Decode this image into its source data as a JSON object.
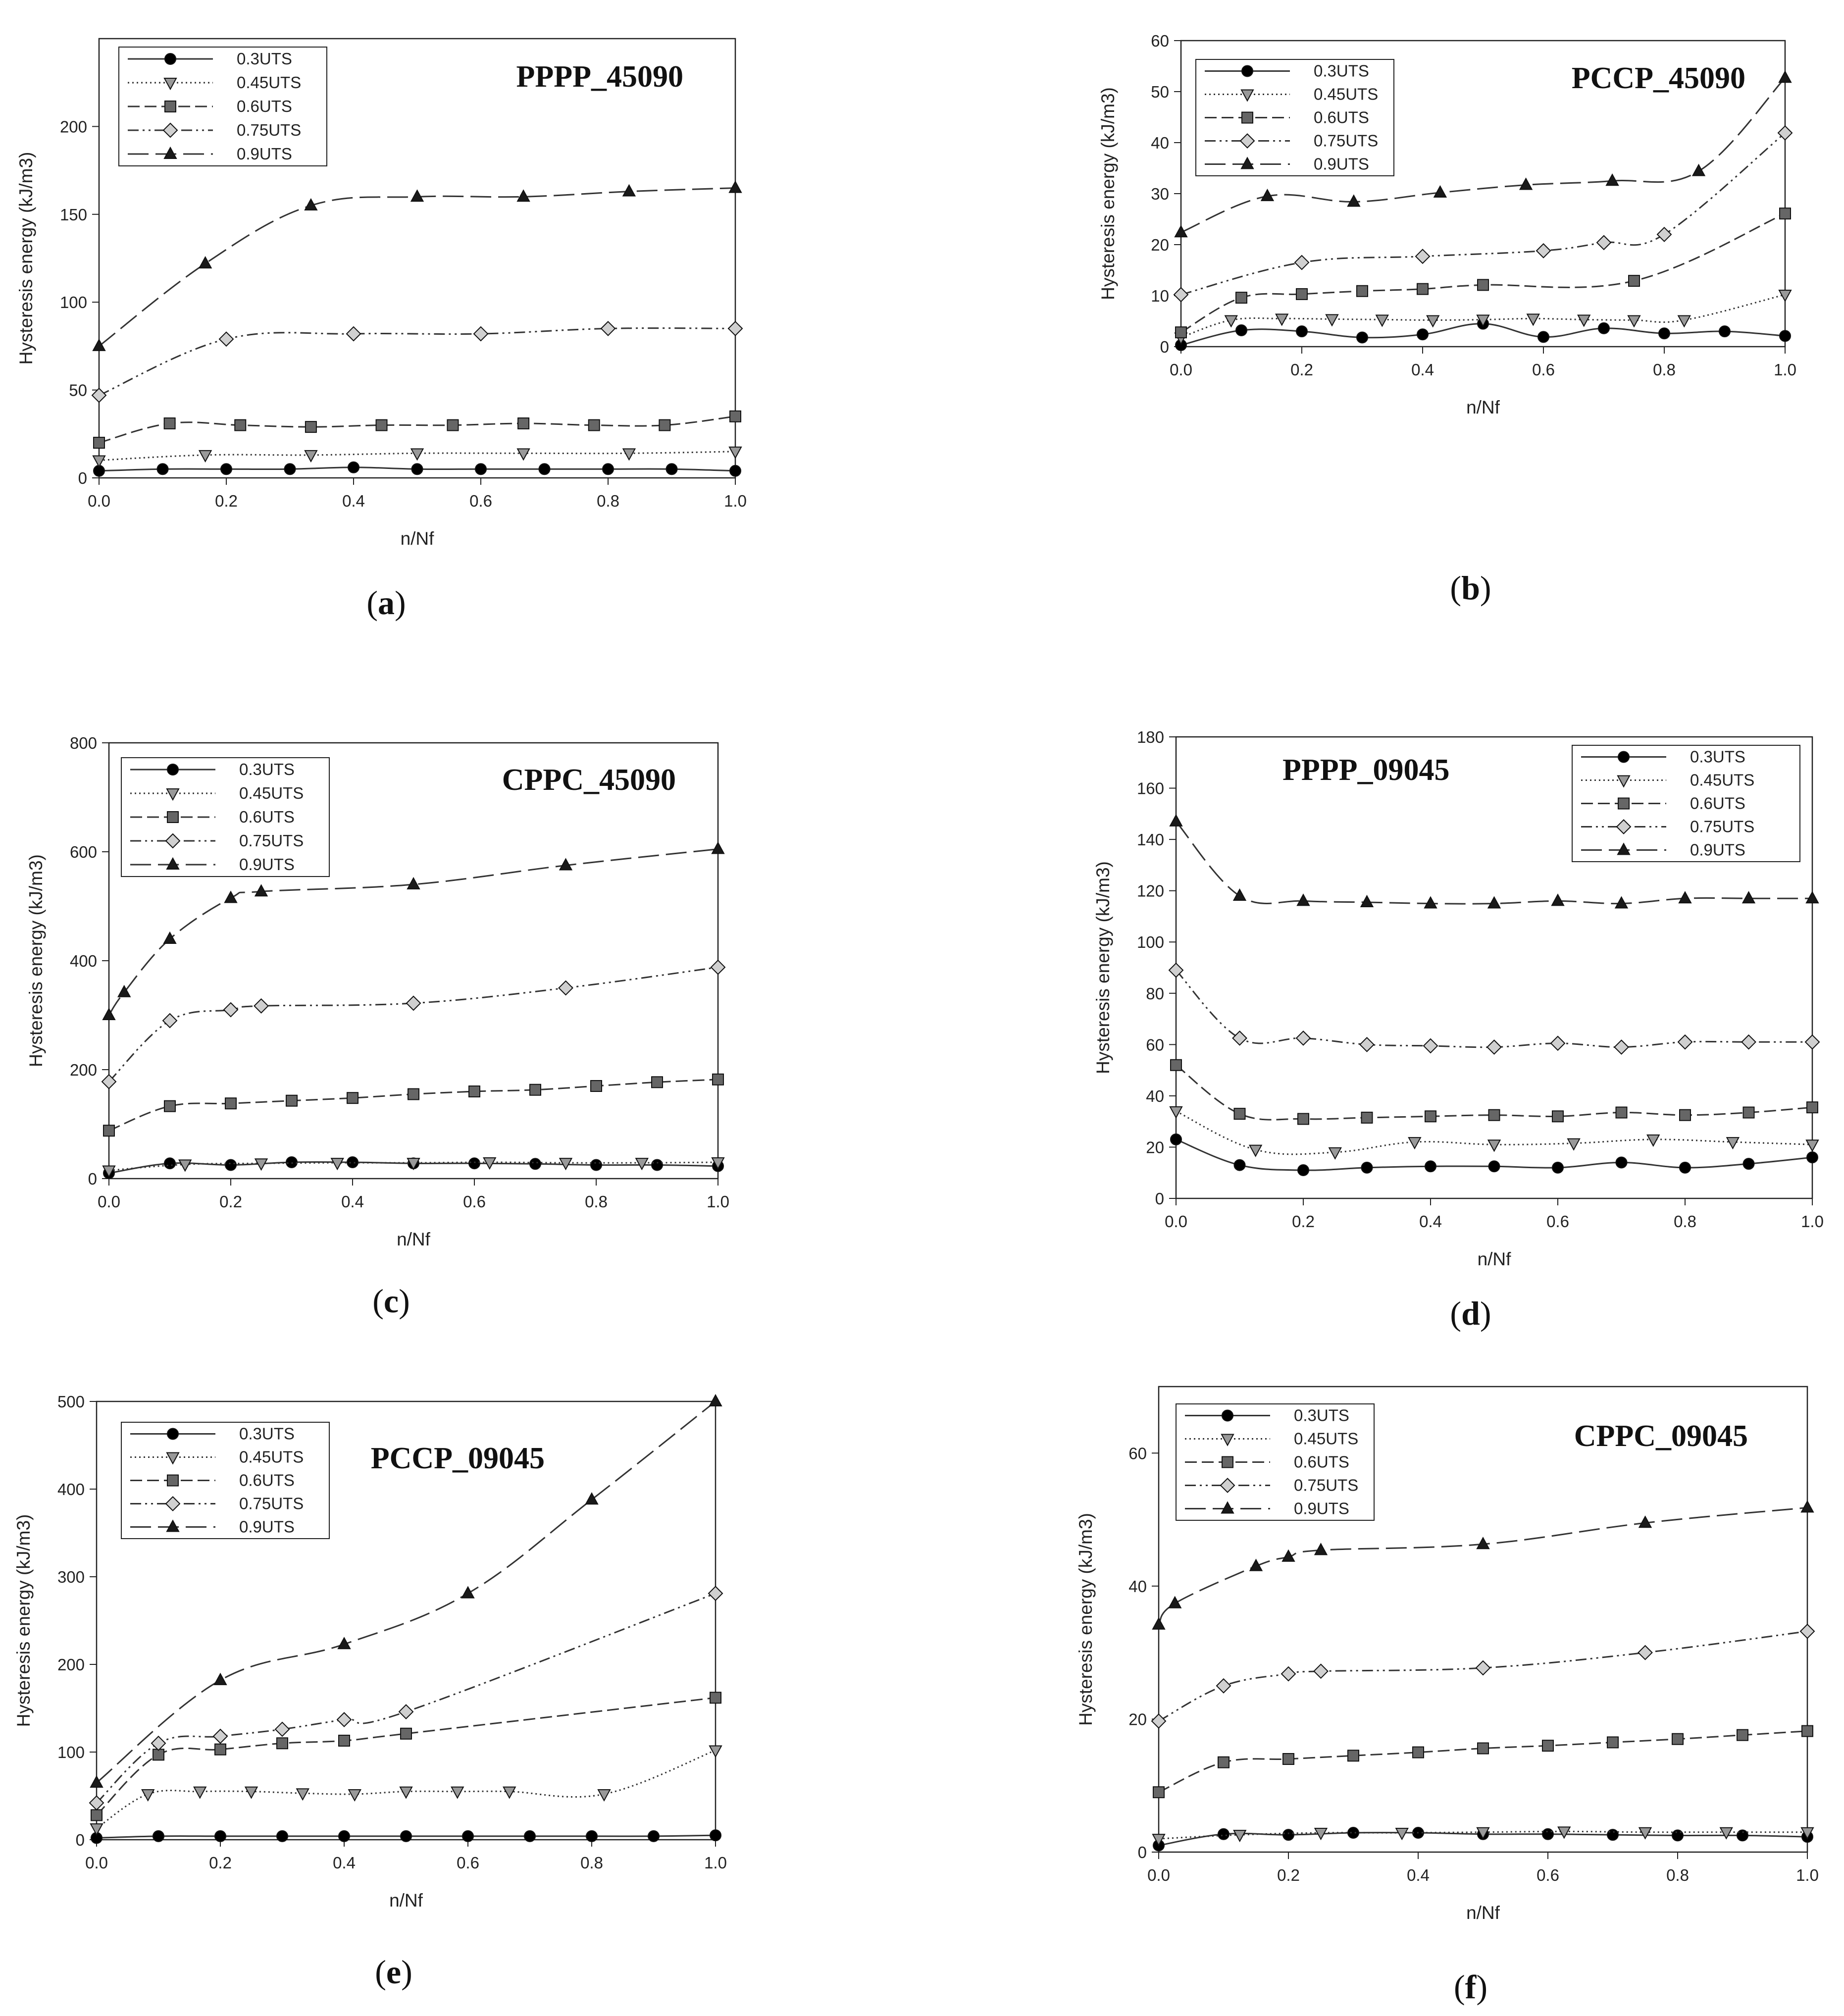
{
  "figure": {
    "axis_label_y_m3": "Hysteresis energy (kJ/m3)",
    "axis_label_y_slash": "Hysteresis energy (kJ/m3)",
    "axis_label_x": "n/Nf"
  },
  "style": {
    "line_color": "#333333",
    "circle_fill": "#000000",
    "triangle_down_fill": "#999999",
    "square_fill": "#666666",
    "diamond_fill": "#d0d0d0",
    "triangle_up_fill": "#1a1a1a"
  },
  "chart_data": [
    {
      "type": "line",
      "panel": "a",
      "title": "PPPP_45090",
      "xlabel": "n/Nf",
      "ylabel": "Hysteresis energy (kJ/m3)",
      "xlim": [
        0,
        1.0
      ],
      "ylim": [
        0,
        250
      ],
      "xticks": [
        "0.0",
        "0.2",
        "0.4",
        "0.6",
        "0.8",
        "1.0"
      ],
      "yticks": [
        "0",
        "50",
        "100",
        "150",
        "200"
      ],
      "legend": "top-left",
      "series": [
        {
          "name": "0.3UTS",
          "x": [
            0,
            0.1,
            0.2,
            0.3,
            0.4,
            0.5,
            0.6,
            0.7,
            0.8,
            0.9,
            1.0
          ],
          "y": [
            4,
            5,
            5,
            5,
            6,
            5,
            5,
            5,
            5,
            5,
            4
          ]
        },
        {
          "name": "0.45UTS",
          "x": [
            0,
            0.167,
            0.333,
            0.5,
            0.667,
            0.833,
            1.0
          ],
          "y": [
            10,
            13,
            13,
            14,
            14,
            14,
            15
          ]
        },
        {
          "name": "0.6UTS",
          "x": [
            0,
            0.111,
            0.222,
            0.333,
            0.444,
            0.556,
            0.667,
            0.778,
            0.889,
            1.0
          ],
          "y": [
            20,
            31,
            30,
            29,
            30,
            30,
            31,
            30,
            30,
            35
          ]
        },
        {
          "name": "0.75UTS",
          "x": [
            0,
            0.2,
            0.4,
            0.6,
            0.8,
            1.0
          ],
          "y": [
            47,
            79,
            82,
            82,
            85,
            85
          ]
        },
        {
          "name": "0.9UTS",
          "x": [
            0,
            0.167,
            0.333,
            0.5,
            0.667,
            0.833,
            1.0
          ],
          "y": [
            75,
            122,
            155,
            160,
            160,
            163,
            165
          ]
        }
      ],
      "caption": "a"
    },
    {
      "type": "line",
      "panel": "b",
      "title": "PCCP_45090",
      "xlabel": "n/Nf",
      "ylabel": "Hysteresis energy (kJ/m3)",
      "xlim": [
        0,
        1.0
      ],
      "ylim": [
        0,
        60
      ],
      "xticks": [
        "0.0",
        "0.2",
        "0.4",
        "0.6",
        "0.8",
        "1.0"
      ],
      "yticks": [
        "0",
        "10",
        "20",
        "30",
        "40",
        "50",
        "60"
      ],
      "legend": "top-left",
      "series": [
        {
          "name": "0.3UTS",
          "x": [
            0,
            0.1,
            0.2,
            0.3,
            0.4,
            0.5,
            0.6,
            0.7,
            0.8,
            0.9,
            1.0
          ],
          "y": [
            0.3,
            3.2,
            3.0,
            1.8,
            2.4,
            4.5,
            1.9,
            3.6,
            2.6,
            3.0,
            2.1
          ]
        },
        {
          "name": "0.45UTS",
          "x": [
            0,
            0.083,
            0.167,
            0.25,
            0.333,
            0.417,
            0.5,
            0.583,
            0.667,
            0.75,
            0.833,
            1.0
          ],
          "y": [
            1.8,
            5.2,
            5.5,
            5.4,
            5.3,
            5.2,
            5.3,
            5.5,
            5.3,
            5.2,
            5.2,
            10.2
          ]
        },
        {
          "name": "0.6UTS",
          "x": [
            0,
            0.1,
            0.2,
            0.3,
            0.4,
            0.5,
            0.75,
            1.0
          ],
          "y": [
            2.8,
            9.6,
            10.3,
            10.9,
            11.3,
            12.1,
            12.9,
            26.1
          ]
        },
        {
          "name": "0.75UTS",
          "x": [
            0,
            0.2,
            0.4,
            0.6,
            0.7,
            0.8,
            1.0
          ],
          "y": [
            10.2,
            16.5,
            17.7,
            18.8,
            20.4,
            22.0,
            41.9
          ]
        },
        {
          "name": "0.9UTS",
          "x": [
            0,
            0.143,
            0.286,
            0.429,
            0.571,
            0.714,
            0.857,
            1.0
          ],
          "y": [
            22.4,
            29.5,
            28.4,
            30.2,
            31.7,
            32.5,
            34.4,
            52.7
          ]
        }
      ],
      "caption": "b"
    },
    {
      "type": "line",
      "panel": "c",
      "title": "CPPC_45090",
      "xlabel": "n/Nf",
      "ylabel": "Hysteresis energy (kJ/m3)",
      "xlim": [
        0,
        1.0
      ],
      "ylim": [
        0,
        800
      ],
      "xticks": [
        "0.0",
        "0.2",
        "0.4",
        "0.6",
        "0.8",
        "1.0"
      ],
      "yticks": [
        "0",
        "200",
        "400",
        "600",
        "800"
      ],
      "legend": "top-left",
      "series": [
        {
          "name": "0.3UTS",
          "x": [
            0,
            0.1,
            0.2,
            0.3,
            0.4,
            0.5,
            0.6,
            0.7,
            0.8,
            0.9,
            1.0
          ],
          "y": [
            10,
            28,
            25,
            30,
            30,
            28,
            28,
            27,
            25,
            25,
            23
          ]
        },
        {
          "name": "0.45UTS",
          "x": [
            0,
            0.125,
            0.25,
            0.375,
            0.5,
            0.625,
            0.75,
            0.875,
            1.0
          ],
          "y": [
            15,
            26,
            28,
            29,
            29,
            30,
            29,
            29,
            30
          ]
        },
        {
          "name": "0.6UTS",
          "x": [
            0,
            0.1,
            0.2,
            0.3,
            0.4,
            0.5,
            0.6,
            0.7,
            0.8,
            0.9,
            1.0
          ],
          "y": [
            88,
            133,
            138,
            143,
            148,
            155,
            160,
            163,
            170,
            177,
            182
          ]
        },
        {
          "name": "0.75UTS",
          "x": [
            0,
            0.1,
            0.2,
            0.25,
            0.5,
            0.75,
            1.0
          ],
          "y": [
            178,
            290,
            310,
            317,
            322,
            350,
            388
          ]
        },
        {
          "name": "0.9UTS",
          "x": [
            0,
            0.025,
            0.1,
            0.2,
            0.25,
            0.5,
            0.75,
            1.0
          ],
          "y": [
            300,
            342,
            440,
            515,
            527,
            540,
            575,
            605
          ]
        }
      ],
      "caption": "c"
    },
    {
      "type": "line",
      "panel": "d",
      "title": "PPPP_09045",
      "xlabel": "n/Nf",
      "ylabel": "Hysteresis energy (kJ/m3)",
      "xlim": [
        0,
        1.0
      ],
      "ylim": [
        0,
        180
      ],
      "xticks": [
        "0.0",
        "0.2",
        "0.4",
        "0.6",
        "0.8",
        "1.0"
      ],
      "yticks": [
        "0",
        "20",
        "40",
        "60",
        "80",
        "100",
        "120",
        "140",
        "160",
        "180"
      ],
      "legend": "top-right",
      "series": [
        {
          "name": "0.3UTS",
          "x": [
            0,
            0.1,
            0.2,
            0.3,
            0.4,
            0.5,
            0.6,
            0.7,
            0.8,
            0.9,
            1.0
          ],
          "y": [
            23,
            13,
            11,
            12,
            12.5,
            12.5,
            12,
            14,
            12,
            13.5,
            16
          ]
        },
        {
          "name": "0.45UTS",
          "x": [
            0,
            0.125,
            0.25,
            0.375,
            0.5,
            0.625,
            0.75,
            0.875,
            1.0
          ],
          "y": [
            34,
            19,
            18,
            22,
            21,
            21.5,
            23,
            22,
            21
          ]
        },
        {
          "name": "0.6UTS",
          "x": [
            0,
            0.1,
            0.2,
            0.3,
            0.4,
            0.5,
            0.6,
            0.7,
            0.8,
            0.9,
            1.0
          ],
          "y": [
            52,
            33,
            31,
            31.5,
            32,
            32.5,
            32,
            33.5,
            32.5,
            33.5,
            35.5
          ]
        },
        {
          "name": "0.75UTS",
          "x": [
            0,
            0.1,
            0.2,
            0.3,
            0.4,
            0.5,
            0.6,
            0.7,
            0.8,
            0.9,
            1.0
          ],
          "y": [
            89,
            62.5,
            62.5,
            60,
            59.5,
            59,
            60.5,
            59,
            61,
            61,
            61
          ]
        },
        {
          "name": "0.9UTS",
          "x": [
            0,
            0.1,
            0.2,
            0.3,
            0.4,
            0.5,
            0.6,
            0.7,
            0.8,
            0.9,
            1.0
          ],
          "y": [
            147,
            118,
            116,
            115.5,
            115,
            115,
            116,
            115,
            117,
            117,
            117
          ]
        }
      ],
      "caption": "d"
    },
    {
      "type": "line",
      "panel": "e",
      "title": "PCCP_09045",
      "xlabel": "n/Nf",
      "ylabel": "Hysteresis energy (kJ/m3)",
      "xlim": [
        0,
        1.0
      ],
      "ylim": [
        0,
        500
      ],
      "xticks": [
        "0.0",
        "0.2",
        "0.4",
        "0.6",
        "0.8",
        "1.0"
      ],
      "yticks": [
        "0",
        "100",
        "200",
        "300",
        "400",
        "500"
      ],
      "legend": "top-left",
      "series": [
        {
          "name": "0.3UTS",
          "x": [
            0,
            0.1,
            0.2,
            0.3,
            0.4,
            0.5,
            0.6,
            0.7,
            0.8,
            0.9,
            1.0
          ],
          "y": [
            2,
            4,
            4,
            4,
            4,
            4,
            4,
            4,
            4,
            4,
            5
          ]
        },
        {
          "name": "0.45UTS",
          "x": [
            0,
            0.083,
            0.167,
            0.25,
            0.333,
            0.417,
            0.5,
            0.583,
            0.667,
            0.82,
            1.0
          ],
          "y": [
            13,
            52,
            55,
            55,
            53,
            52,
            55,
            55,
            55,
            52,
            102
          ]
        },
        {
          "name": "0.6UTS",
          "x": [
            0,
            0.1,
            0.2,
            0.3,
            0.4,
            0.5,
            1.0
          ],
          "y": [
            28,
            97,
            103,
            110,
            113,
            121,
            162
          ]
        },
        {
          "name": "0.75UTS",
          "x": [
            0,
            0.1,
            0.2,
            0.3,
            0.4,
            0.5,
            1.0
          ],
          "y": [
            42,
            110,
            118,
            126,
            137,
            146,
            281
          ]
        },
        {
          "name": "0.9UTS",
          "x": [
            0,
            0.2,
            0.4,
            0.6,
            0.8,
            1.0
          ],
          "y": [
            65,
            182,
            223,
            281,
            388,
            500
          ]
        }
      ],
      "caption": "e"
    },
    {
      "type": "line",
      "panel": "f",
      "title": "CPPC_09045",
      "xlabel": "n/Nf",
      "ylabel": "Hysteresis energy (kJ/m3)",
      "xlim": [
        0,
        1.0
      ],
      "ylim": [
        0,
        70
      ],
      "xticks": [
        "0.0",
        "0.2",
        "0.4",
        "0.6",
        "0.8",
        "1.0"
      ],
      "yticks": [
        "0",
        "20",
        "40",
        "60"
      ],
      "legend": "top-left",
      "series": [
        {
          "name": "0.3UTS",
          "x": [
            0,
            0.1,
            0.2,
            0.3,
            0.4,
            0.5,
            0.6,
            0.7,
            0.8,
            0.9,
            1.0
          ],
          "y": [
            1,
            2.7,
            2.6,
            2.9,
            2.9,
            2.7,
            2.7,
            2.6,
            2.5,
            2.5,
            2.3
          ]
        },
        {
          "name": "0.45UTS",
          "x": [
            0,
            0.125,
            0.25,
            0.375,
            0.5,
            0.625,
            0.75,
            0.875,
            1.0
          ],
          "y": [
            2,
            2.6,
            2.9,
            2.9,
            3.0,
            3.1,
            3.0,
            3.0,
            3.0
          ]
        },
        {
          "name": "0.6UTS",
          "x": [
            0,
            0.1,
            0.2,
            0.3,
            0.4,
            0.5,
            0.6,
            0.7,
            0.8,
            0.9,
            1.0
          ],
          "y": [
            9,
            13.5,
            14,
            14.5,
            15,
            15.6,
            16,
            16.5,
            17,
            17.6,
            18.2
          ]
        },
        {
          "name": "0.75UTS",
          "x": [
            0,
            0.1,
            0.2,
            0.25,
            0.5,
            0.75,
            1.0
          ],
          "y": [
            19.7,
            25,
            26.8,
            27.2,
            27.7,
            30,
            33.2
          ]
        },
        {
          "name": "0.9UTS",
          "x": [
            0,
            0.025,
            0.15,
            0.2,
            0.25,
            0.5,
            0.75,
            1.0
          ],
          "y": [
            34.2,
            37.4,
            43,
            44.4,
            45.4,
            46.3,
            49.5,
            51.8
          ]
        }
      ],
      "caption": "f"
    }
  ]
}
